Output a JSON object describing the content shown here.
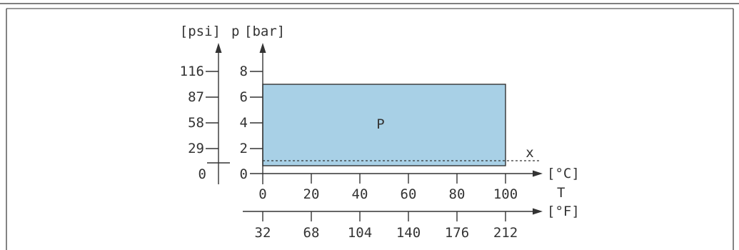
{
  "diagram": {
    "region_label": "P",
    "dashed_label": "x",
    "colors": {
      "region_fill": "#a8d0e6",
      "line": "#333333"
    },
    "pressure_axis": {
      "unit_psi": "[psi]",
      "symbol": "p",
      "unit_bar": "[bar]",
      "bar_ticks": [
        "0",
        "2",
        "4",
        "6",
        "8"
      ],
      "psi_ticks": [
        "0",
        "29",
        "58",
        "87",
        "116"
      ]
    },
    "temperature_axis": {
      "symbol": "T",
      "unit_c": "[°C]",
      "unit_f": "[°F]",
      "c_ticks": [
        "0",
        "20",
        "40",
        "60",
        "80",
        "100"
      ],
      "f_ticks": [
        "32",
        "68",
        "104",
        "140",
        "176",
        "212"
      ]
    }
  },
  "chart_data": {
    "type": "area",
    "x_unit": "°C",
    "y_unit": "bar",
    "region": {
      "name": "P",
      "x_range": [
        0,
        100
      ],
      "y_range": [
        0.5,
        7
      ]
    },
    "threshold_line": {
      "name": "x",
      "y": 1
    },
    "xlim": [
      0,
      100
    ],
    "ylim": [
      0,
      8
    ],
    "secondary_x": {
      "unit": "°F",
      "ticks": [
        32,
        68,
        104,
        140,
        176,
        212
      ]
    },
    "secondary_y": {
      "unit": "psi",
      "ticks": [
        0,
        29,
        58,
        87,
        116
      ]
    }
  }
}
